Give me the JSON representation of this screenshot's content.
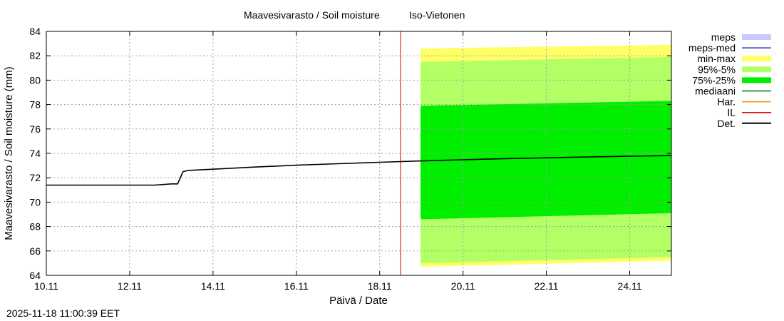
{
  "chart_data": {
    "type": "area",
    "title": "Maavesivarasto / Soil moisture",
    "station": "Iso-Vietonen",
    "xlabel": "Päivä / Date",
    "ylabel": "Maavesivarasto / Soil moisture (mm)",
    "ylim": [
      64,
      84
    ],
    "yticks": [
      64,
      66,
      68,
      70,
      72,
      74,
      76,
      78,
      80,
      82,
      84
    ],
    "xlim": [
      0,
      15
    ],
    "xticks": [
      {
        "x": 0,
        "label": "10.11"
      },
      {
        "x": 2,
        "label": "12.11"
      },
      {
        "x": 4,
        "label": "14.11"
      },
      {
        "x": 6,
        "label": "16.11"
      },
      {
        "x": 8,
        "label": "18.11"
      },
      {
        "x": 10,
        "label": "20.11"
      },
      {
        "x": 12,
        "label": "22.11"
      },
      {
        "x": 14,
        "label": "24.11"
      }
    ],
    "grid": true,
    "legend_position": "right",
    "legend": [
      {
        "key": "meps",
        "label": "meps",
        "color": "#c8c8ff",
        "kind": "box"
      },
      {
        "key": "meps_med",
        "label": "meps-med",
        "color": "#3a3ac0",
        "kind": "line"
      },
      {
        "key": "min_max",
        "label": "min-max",
        "color": "#ffff66",
        "kind": "box"
      },
      {
        "key": "p95_5",
        "label": "95%-5%",
        "color": "#b3ff66",
        "kind": "box"
      },
      {
        "key": "p75_25",
        "label": "75%-25%",
        "color": "#00ee00",
        "kind": "box"
      },
      {
        "key": "mediaani",
        "label": "mediaani",
        "color": "#007700",
        "kind": "line"
      },
      {
        "key": "har",
        "label": "Har.",
        "color": "#ff8c00",
        "kind": "line"
      },
      {
        "key": "il",
        "label": "IL",
        "color": "#e00000",
        "kind": "line"
      },
      {
        "key": "det",
        "label": "Det.",
        "color": "#000000",
        "kind": "line"
      }
    ],
    "il_marker_x": 8.5,
    "det_series": [
      {
        "x": 0,
        "y": 71.4
      },
      {
        "x": 2.6,
        "y": 71.4
      },
      {
        "x": 3.0,
        "y": 71.5
      },
      {
        "x": 3.15,
        "y": 71.5
      },
      {
        "x": 3.28,
        "y": 72.5
      },
      {
        "x": 3.4,
        "y": 72.6
      },
      {
        "x": 4.0,
        "y": 72.7
      },
      {
        "x": 5.0,
        "y": 72.88
      },
      {
        "x": 6.0,
        "y": 73.03
      },
      {
        "x": 7.0,
        "y": 73.15
      },
      {
        "x": 8.0,
        "y": 73.27
      },
      {
        "x": 9.0,
        "y": 73.38
      },
      {
        "x": 10.0,
        "y": 73.48
      },
      {
        "x": 11.0,
        "y": 73.57
      },
      {
        "x": 12.0,
        "y": 73.64
      },
      {
        "x": 13.0,
        "y": 73.71
      },
      {
        "x": 14.0,
        "y": 73.76
      },
      {
        "x": 15.0,
        "y": 73.82
      }
    ],
    "bands": {
      "min_max": {
        "x": [
          9.0,
          15.0
        ],
        "upper": [
          82.6,
          82.9
        ],
        "lower": [
          64.7,
          65.2
        ]
      },
      "p95_5": {
        "x": [
          9.0,
          15.0
        ],
        "upper": [
          81.5,
          81.9
        ],
        "lower": [
          65.0,
          65.5
        ]
      },
      "p75_25": {
        "x": [
          9.0,
          15.0
        ],
        "upper": [
          77.9,
          78.3
        ],
        "lower": [
          68.6,
          69.1
        ]
      }
    },
    "band_start_x": 8.98
  },
  "footer": {
    "timestamp": "2025-11-18 11:00:39 EET"
  }
}
